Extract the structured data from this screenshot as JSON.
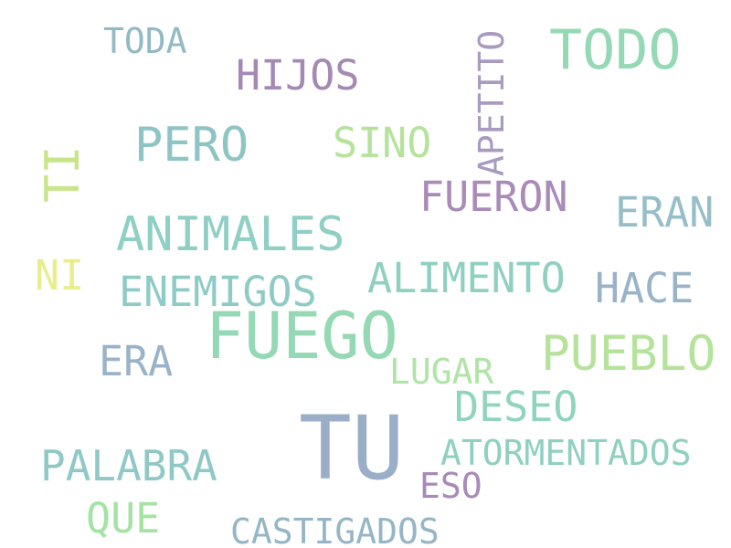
{
  "words": {
    "tu": {
      "text": "TU",
      "color": "#9aaec8"
    },
    "fuego": {
      "text": "FUEGO",
      "color": "#94d8b4"
    },
    "todo": {
      "text": "TODO",
      "color": "#94d8b4"
    },
    "animales": {
      "text": "ANIMALES",
      "color": "#8fcfc4"
    },
    "pueblo": {
      "text": "PUEBLO",
      "color": "#b6e39b"
    },
    "pero": {
      "text": "PERO",
      "color": "#8ec5c4"
    },
    "palabra": {
      "text": "PALABRA",
      "color": "#90c8c8"
    },
    "fueron": {
      "text": "FUERON",
      "color": "#a98ab8"
    },
    "alimento": {
      "text": "ALIMENTO",
      "color": "#8fd0c0"
    },
    "enemigos": {
      "text": "ENEMIGOS",
      "color": "#8fcbc6"
    },
    "hijos": {
      "text": "HIJOS",
      "color": "#a489b4"
    },
    "erap": {
      "text": "ERAN",
      "color": "#95bec8"
    },
    "hace": {
      "text": "HACE",
      "color": "#9ab3c8"
    },
    "deseo": {
      "text": "DESEO",
      "color": "#8fd4bc"
    },
    "era": {
      "text": "ERA",
      "color": "#9ab3c8"
    },
    "sino": {
      "text": "SINO",
      "color": "#b6e39b"
    },
    "atormentados": {
      "text": "ATORMENTADOS",
      "color": "#8fd0c0"
    },
    "castigados": {
      "text": "CASTIGADOS",
      "color": "#96b6c6"
    },
    "que": {
      "text": "QUE",
      "color": "#a4e3a4"
    },
    "lugar": {
      "text": "LUGAR",
      "color": "#b0e4a6"
    },
    "eso": {
      "text": "ESO",
      "color": "#a98ab8"
    },
    "toda": {
      "text": "TODA",
      "color": "#93b9c4"
    },
    "ni": {
      "text": "NI",
      "color": "#e8ee8a"
    },
    "ti": {
      "text": "TI",
      "color": "#c8e58a"
    },
    "apetito": {
      "text": "APETITO",
      "color": "#a99bc0"
    }
  }
}
